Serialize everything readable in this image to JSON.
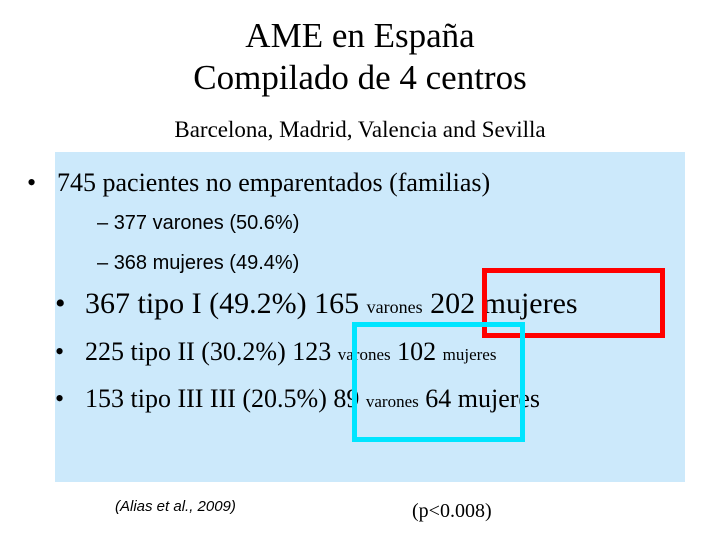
{
  "title": {
    "line1": "AME en España",
    "line2": "Compilado de 4 centros"
  },
  "subtitle": "Barcelona, Madrid, Valencia and Sevilla",
  "panel": {
    "bullet_glyph": "•",
    "dash_glyph": "–",
    "main": "745 pacientes no emparentados (familias)",
    "sub": [
      "377 varones (50.6%)",
      "368 mujeres (49.4%)"
    ],
    "types": [
      {
        "label": "367 tipo I  (49.2%)",
        "male_count": "165",
        "male_label": "varones",
        "female_count": "202",
        "female_label": "mujeres"
      },
      {
        "label": "225 tipo  II (30.2%)",
        "male_count": "123",
        "male_label": "varones",
        "female_count": "102",
        "female_label": "mujeres"
      },
      {
        "label": "153 tipo III III (20.5%)",
        "male_count": "89",
        "male_label": "varones",
        "female_count": "64",
        "female_label": "mujeres"
      }
    ]
  },
  "citation": "(Alias et al., 2009)",
  "p_value": "(p<0.008)",
  "colors": {
    "panel_background": "#cce9fb",
    "highlight_red": "#ff0000",
    "highlight_cyan": "#00e5ff"
  }
}
